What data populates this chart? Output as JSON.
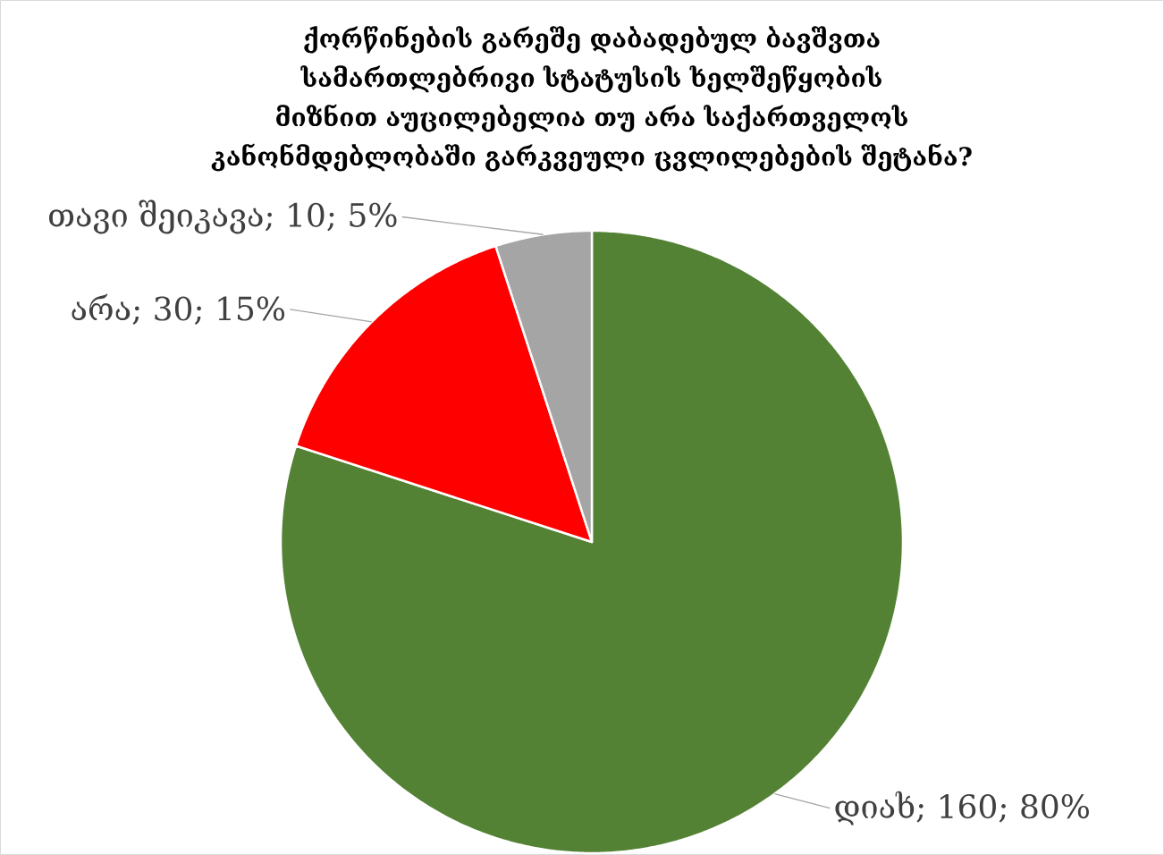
{
  "chart_data": {
    "type": "pie",
    "title": "ქორწინების გარეშე დაბადებულ ბავშვთა სამართლებრივი სტატუსის ხელშეწყობის მიზნით  აუცილებელია თუ არა საქართველოს კანონმდებლობაში გარკვეული ცვლილებების შეტანა?",
    "categories": [
      "დიახ",
      "არა",
      "თავი შეიკავა"
    ],
    "values": [
      160,
      30,
      10
    ],
    "colors": [
      "#548235",
      "#ff0000",
      "#a5a5a5"
    ],
    "value_labels": [
      "; 160; 80%",
      "; 30; 15%",
      "; 10; 5%"
    ]
  }
}
